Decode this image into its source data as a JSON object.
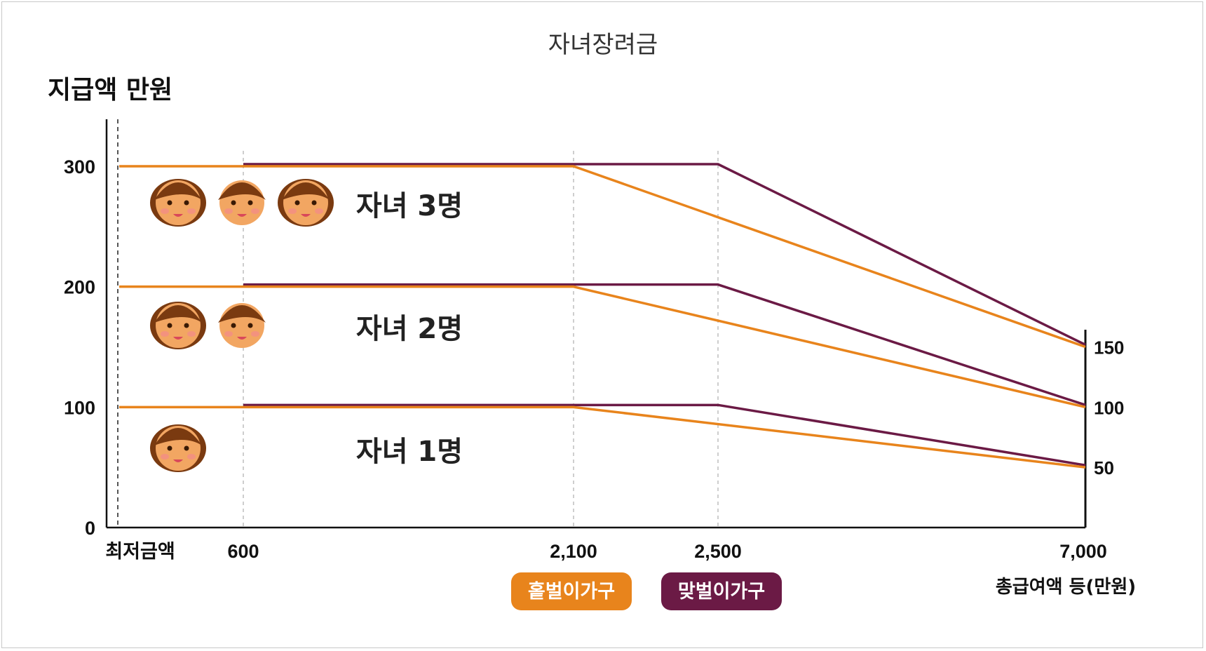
{
  "chart_data": {
    "type": "line",
    "title": "자녀장려금",
    "ylabel": "지급액 만원",
    "xlabel": "총급여액 등(만원)",
    "ylim": [
      0,
      300
    ],
    "y_ticks": [
      "0",
      "100",
      "200",
      "300"
    ],
    "right_ticks": [
      "150",
      "100",
      "50"
    ],
    "x_ticks": [
      "최저금액",
      "600",
      "2,100",
      "2,500",
      "7,000"
    ],
    "grid": "vertical dashed at 600, 2,100, 2,500",
    "legend_placement": "bottom-center",
    "colors": {
      "single": "#E8841C",
      "dual": "#6B1A45"
    },
    "legend": [
      {
        "label": "홑벌이가구",
        "color": "#E8841C"
      },
      {
        "label": "맞벌이가구",
        "color": "#6B1A45"
      }
    ],
    "groups": [
      {
        "label": "자녀 3명",
        "children": 3,
        "max": 300,
        "end": 150
      },
      {
        "label": "자녀 2명",
        "children": 2,
        "max": 200,
        "end": 100
      },
      {
        "label": "자녀 1명",
        "children": 1,
        "max": 100,
        "end": 50
      }
    ],
    "series": [
      {
        "name": "홑벌이가구",
        "group": "자녀 3명",
        "x": [
          "최저금액",
          "2,100",
          "7,000"
        ],
        "values": [
          300,
          300,
          150
        ]
      },
      {
        "name": "맞벌이가구",
        "group": "자녀 3명",
        "x": [
          "600",
          "2,500",
          "7,000"
        ],
        "values": [
          300,
          300,
          150
        ]
      },
      {
        "name": "홑벌이가구",
        "group": "자녀 2명",
        "x": [
          "최저금액",
          "2,100",
          "7,000"
        ],
        "values": [
          200,
          200,
          100
        ]
      },
      {
        "name": "맞벌이가구",
        "group": "자녀 2명",
        "x": [
          "600",
          "2,500",
          "7,000"
        ],
        "values": [
          200,
          200,
          100
        ]
      },
      {
        "name": "홑벌이가구",
        "group": "자녀 1명",
        "x": [
          "최저금액",
          "2,100",
          "7,000"
        ],
        "values": [
          100,
          100,
          50
        ]
      },
      {
        "name": "맞벌이가구",
        "group": "자녀 1명",
        "x": [
          "600",
          "2,500",
          "7,000"
        ],
        "values": [
          100,
          100,
          50
        ]
      }
    ]
  }
}
